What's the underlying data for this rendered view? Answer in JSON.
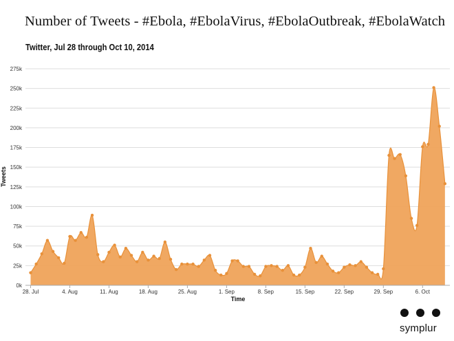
{
  "title": "Number of Tweets - #Ebola, #EbolaVirus, #EbolaOutbreak, #EbolaWatch",
  "subtitle": "Twitter, Jul 28 through Oct 10, 2014",
  "brand": {
    "name": "symplur"
  },
  "colors": {
    "fill": "#efa35a",
    "line": "#e8913a",
    "point": "#e8913a",
    "grid": "#dddddd",
    "axis": "#aaaaaa"
  },
  "chart_data": {
    "type": "area",
    "title": "Number of Tweets - #Ebola, #EbolaVirus, #EbolaOutbreak, #EbolaWatch",
    "subtitle": "Twitter, Jul 28 through Oct 10, 2014",
    "xlabel": "Time",
    "ylabel": "Tweets",
    "ylim": [
      0,
      275000
    ],
    "y_ticks": [
      0,
      25000,
      50000,
      75000,
      100000,
      125000,
      150000,
      175000,
      200000,
      225000,
      250000,
      275000
    ],
    "y_tick_labels": [
      "0k",
      "25k",
      "50k",
      "75k",
      "100k",
      "125k",
      "150k",
      "175k",
      "200k",
      "225k",
      "250k",
      "275k"
    ],
    "x_tick_labels": [
      "28. Jul",
      "4. Aug",
      "11. Aug",
      "18. Aug",
      "25. Aug",
      "1. Sep",
      "8. Sep",
      "15. Sep",
      "22. Sep",
      "29. Sep",
      "6. Oct"
    ],
    "grid": true,
    "legend": "none",
    "x": [
      "Jul 28",
      "Jul 29",
      "Jul 30",
      "Jul 31",
      "Aug 1",
      "Aug 2",
      "Aug 3",
      "Aug 4",
      "Aug 5",
      "Aug 6",
      "Aug 7",
      "Aug 8",
      "Aug 9",
      "Aug 10",
      "Aug 11",
      "Aug 12",
      "Aug 13",
      "Aug 14",
      "Aug 15",
      "Aug 16",
      "Aug 17",
      "Aug 18",
      "Aug 19",
      "Aug 20",
      "Aug 21",
      "Aug 22",
      "Aug 23",
      "Aug 24",
      "Aug 25",
      "Aug 26",
      "Aug 27",
      "Aug 28",
      "Aug 29",
      "Aug 30",
      "Aug 31",
      "Sep 1",
      "Sep 2",
      "Sep 3",
      "Sep 4",
      "Sep 5",
      "Sep 6",
      "Sep 7",
      "Sep 8",
      "Sep 9",
      "Sep 10",
      "Sep 11",
      "Sep 12",
      "Sep 13",
      "Sep 14",
      "Sep 15",
      "Sep 16",
      "Sep 17",
      "Sep 18",
      "Sep 19",
      "Sep 20",
      "Sep 21",
      "Sep 22",
      "Sep 23",
      "Sep 24",
      "Sep 25",
      "Sep 26",
      "Sep 27",
      "Sep 28",
      "Sep 29",
      "Sep 30",
      "Oct 1",
      "Oct 2",
      "Oct 3",
      "Oct 4",
      "Oct 5",
      "Oct 6",
      "Oct 7",
      "Oct 8",
      "Oct 9",
      "Oct 10"
    ],
    "series": [
      {
        "values": [
          16000,
          27000,
          40000,
          57000,
          43000,
          35000,
          28000,
          62000,
          57000,
          67000,
          61000,
          89000,
          39000,
          30000,
          42000,
          51000,
          36000,
          47000,
          38000,
          30000,
          42000,
          32000,
          37000,
          34000,
          55000,
          33000,
          20000,
          27000,
          27000,
          27000,
          24000,
          32000,
          38000,
          19000,
          13000,
          15000,
          31000,
          31000,
          24000,
          24000,
          14000,
          12000,
          24000,
          25000,
          24000,
          19000,
          25000,
          13000,
          13000,
          23000,
          47000,
          29000,
          37000,
          27000,
          18000,
          16000,
          23000,
          26000,
          25000,
          30000,
          23000,
          16000,
          14000,
          21000,
          165000,
          161000,
          166000,
          139000,
          85000,
          76000,
          176000,
          179000,
          251000,
          202000,
          129000
        ]
      }
    ]
  }
}
